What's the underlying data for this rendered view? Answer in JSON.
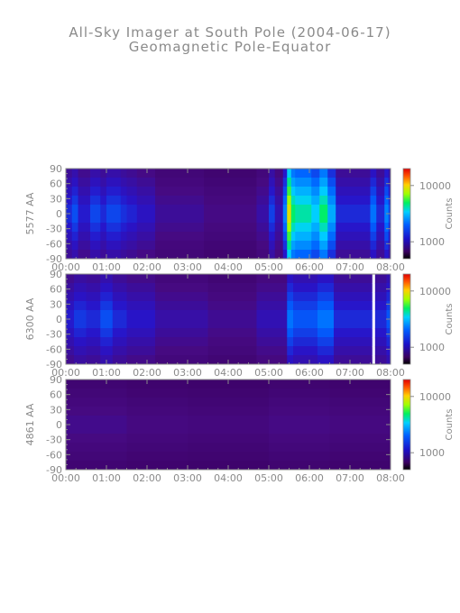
{
  "figure": {
    "title": "All-Sky Imager at South Pole (2004-06-17)",
    "subtitle": "Geomagnetic Pole-Equator"
  },
  "chart_data": [
    {
      "type": "heatmap",
      "ylabel": "5577 AA",
      "x_ticks": [
        "00:00",
        "01:00",
        "02:00",
        "03:00",
        "04:00",
        "05:00",
        "06:00",
        "07:00",
        "08:00"
      ],
      "y_ticks": [
        90,
        60,
        30,
        0,
        -30,
        -60,
        -90
      ],
      "xlim": [
        0,
        8
      ],
      "ylim": [
        -90,
        90
      ],
      "colorbar": {
        "label": "Counts",
        "ticks": [
          10000,
          1000
        ],
        "scale": "log",
        "range": [
          500,
          20000
        ]
      },
      "intensity_bands": [
        {
          "x": [
            0.0,
            0.15
          ],
          "level": 0.3
        },
        {
          "x": [
            0.15,
            0.3
          ],
          "level": 0.35
        },
        {
          "x": [
            0.3,
            0.6
          ],
          "level": 0.28
        },
        {
          "x": [
            0.6,
            0.85
          ],
          "level": 0.34
        },
        {
          "x": [
            0.85,
            1.0
          ],
          "level": 0.3
        },
        {
          "x": [
            1.0,
            1.35
          ],
          "level": 0.34
        },
        {
          "x": [
            1.35,
            1.5
          ],
          "level": 0.31
        },
        {
          "x": [
            1.5,
            1.75
          ],
          "level": 0.29
        },
        {
          "x": [
            1.75,
            2.2
          ],
          "level": 0.26
        },
        {
          "x": [
            2.2,
            3.4
          ],
          "level": 0.2
        },
        {
          "x": [
            3.4,
            4.7
          ],
          "level": 0.17
        },
        {
          "x": [
            4.7,
            5.0
          ],
          "level": 0.22
        },
        {
          "x": [
            5.0,
            5.15
          ],
          "level": 0.33
        },
        {
          "x": [
            5.15,
            5.35
          ],
          "level": 0.24
        },
        {
          "x": [
            5.35,
            5.45
          ],
          "level": 0.42
        },
        {
          "x": [
            5.45,
            5.55
          ],
          "level": 0.8
        },
        {
          "x": [
            5.55,
            5.65
          ],
          "level": 0.62
        },
        {
          "x": [
            5.65,
            6.05
          ],
          "level": 0.58
        },
        {
          "x": [
            6.05,
            6.25
          ],
          "level": 0.52
        },
        {
          "x": [
            6.25,
            6.45
          ],
          "level": 0.62
        },
        {
          "x": [
            6.45,
            6.65
          ],
          "level": 0.47
        },
        {
          "x": [
            6.65,
            7.5
          ],
          "level": 0.3
        },
        {
          "x": [
            7.5,
            7.65
          ],
          "level": 0.4
        },
        {
          "x": [
            7.65,
            7.85
          ],
          "level": 0.3
        },
        {
          "x": [
            7.85,
            7.95
          ],
          "level": 0.42
        },
        {
          "x": [
            7.95,
            8.0
          ],
          "level": 0.33
        }
      ]
    },
    {
      "type": "heatmap",
      "ylabel": "6300 AA",
      "x_ticks": [
        "00:00",
        "01:00",
        "02:00",
        "03:00",
        "04:00",
        "05:00",
        "06:00",
        "07:00",
        "08:00"
      ],
      "y_ticks": [
        90,
        60,
        30,
        0,
        -30,
        -60,
        -90
      ],
      "xlim": [
        0,
        8
      ],
      "ylim": [
        -90,
        90
      ],
      "colorbar": {
        "label": "Counts",
        "ticks": [
          10000,
          1000
        ],
        "scale": "log",
        "range": [
          500,
          20000
        ]
      },
      "intensity_bands": [
        {
          "x": [
            0.0,
            0.2
          ],
          "level": 0.28
        },
        {
          "x": [
            0.2,
            0.5
          ],
          "level": 0.32
        },
        {
          "x": [
            0.5,
            0.85
          ],
          "level": 0.3
        },
        {
          "x": [
            0.85,
            1.15
          ],
          "level": 0.35
        },
        {
          "x": [
            1.15,
            1.5
          ],
          "level": 0.3
        },
        {
          "x": [
            1.5,
            2.2
          ],
          "level": 0.27
        },
        {
          "x": [
            2.2,
            3.5
          ],
          "level": 0.22
        },
        {
          "x": [
            3.5,
            4.7
          ],
          "level": 0.19
        },
        {
          "x": [
            4.7,
            5.45
          ],
          "level": 0.24
        },
        {
          "x": [
            5.45,
            5.6
          ],
          "level": 0.4
        },
        {
          "x": [
            5.6,
            6.2
          ],
          "level": 0.36
        },
        {
          "x": [
            6.2,
            6.6
          ],
          "level": 0.4
        },
        {
          "x": [
            6.6,
            7.55
          ],
          "level": 0.3
        },
        {
          "x": [
            7.55,
            7.62
          ],
          "level": 1.0
        },
        {
          "x": [
            7.62,
            7.9
          ],
          "level": 0.3
        },
        {
          "x": [
            7.9,
            8.0
          ],
          "level": 0.36
        }
      ]
    },
    {
      "type": "heatmap",
      "ylabel": "4861 AA",
      "x_ticks": [
        "00:00",
        "01:00",
        "02:00",
        "03:00",
        "04:00",
        "05:00",
        "06:00",
        "07:00",
        "08:00"
      ],
      "y_ticks": [
        90,
        60,
        30,
        0,
        -30,
        -60,
        -90
      ],
      "xlim": [
        0,
        8
      ],
      "ylim": [
        -90,
        90
      ],
      "colorbar": {
        "label": "Counts",
        "ticks": [
          10000,
          1000
        ],
        "scale": "log",
        "range": [
          500,
          20000
        ]
      },
      "intensity_bands": [
        {
          "x": [
            0.0,
            1.5
          ],
          "level": 0.18
        },
        {
          "x": [
            1.5,
            3.0
          ],
          "level": 0.16
        },
        {
          "x": [
            3.0,
            5.0
          ],
          "level": 0.15
        },
        {
          "x": [
            5.0,
            6.5
          ],
          "level": 0.17
        },
        {
          "x": [
            6.5,
            8.0
          ],
          "level": 0.16
        }
      ]
    }
  ]
}
